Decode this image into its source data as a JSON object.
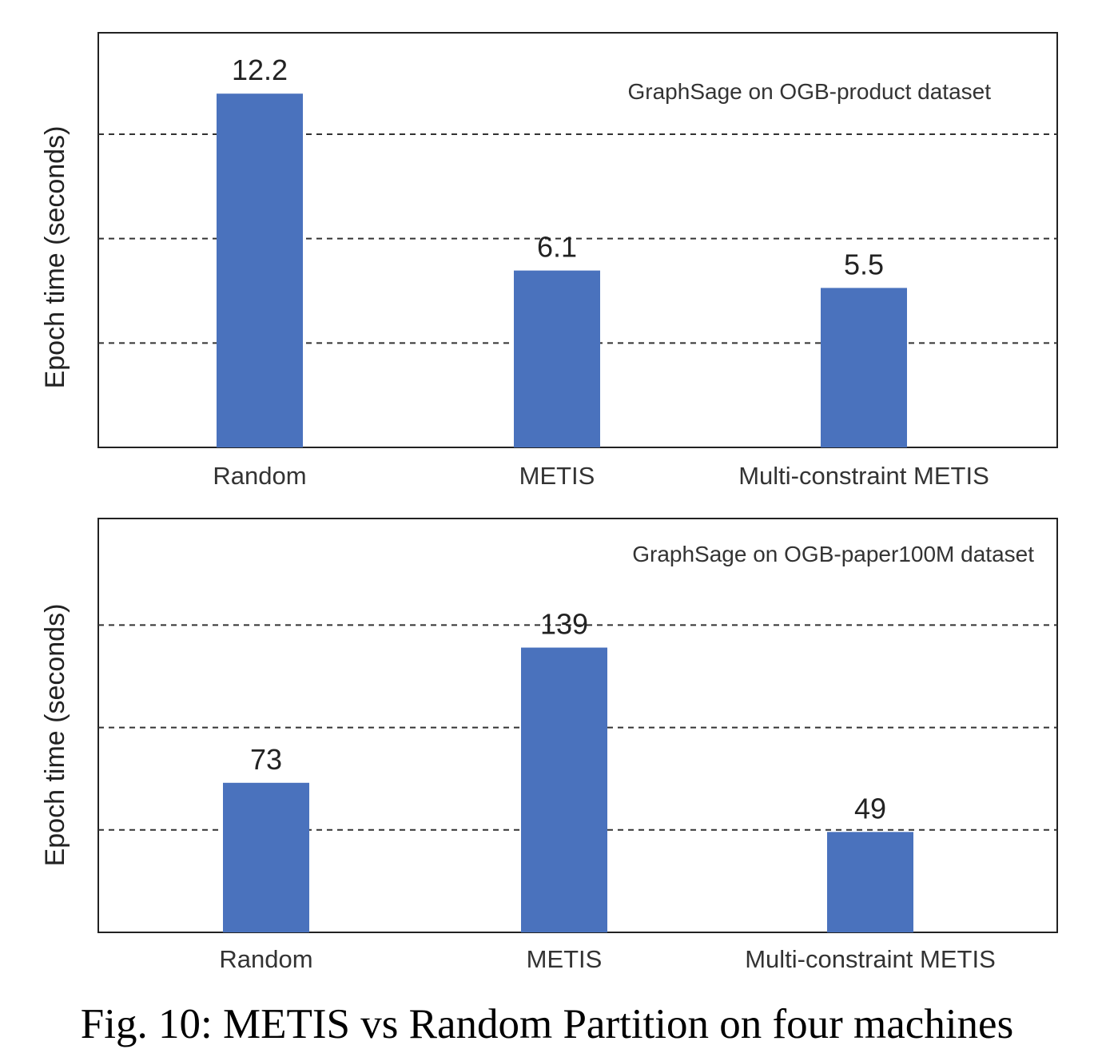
{
  "figure": {
    "caption": "Fig. 10: METIS vs Random Partition on four machines"
  },
  "colors": {
    "bar": "#4a72bd",
    "frame": "#222222",
    "grid": "#333333"
  },
  "chart_data": [
    {
      "type": "bar",
      "title": "GraphSage on OGB-product dataset",
      "xlabel": "",
      "ylabel": "Epoch time (seconds)",
      "categories": [
        "Random",
        "METIS",
        "Multi-constraint METIS"
      ],
      "values": [
        12.2,
        6.1,
        5.5
      ],
      "value_labels": [
        "12.2",
        "6.1",
        "5.5"
      ],
      "ylim": [
        0,
        14.3
      ],
      "gridlines": [
        3.6,
        7.2,
        10.8
      ],
      "grid": true,
      "grid_style": "dashed",
      "y_tick_labels_shown": false
    },
    {
      "type": "bar",
      "title": "GraphSage on OGB-paper100M dataset",
      "xlabel": "",
      "ylabel": "Epoch time (seconds)",
      "categories": [
        "Random",
        "METIS",
        "Multi-constraint METIS"
      ],
      "values": [
        73,
        139,
        49
      ],
      "value_labels": [
        "73",
        "139",
        "49"
      ],
      "ylim": [
        0,
        202
      ],
      "gridlines": [
        50,
        100,
        150
      ],
      "grid": true,
      "grid_style": "dashed",
      "y_tick_labels_shown": false
    }
  ]
}
